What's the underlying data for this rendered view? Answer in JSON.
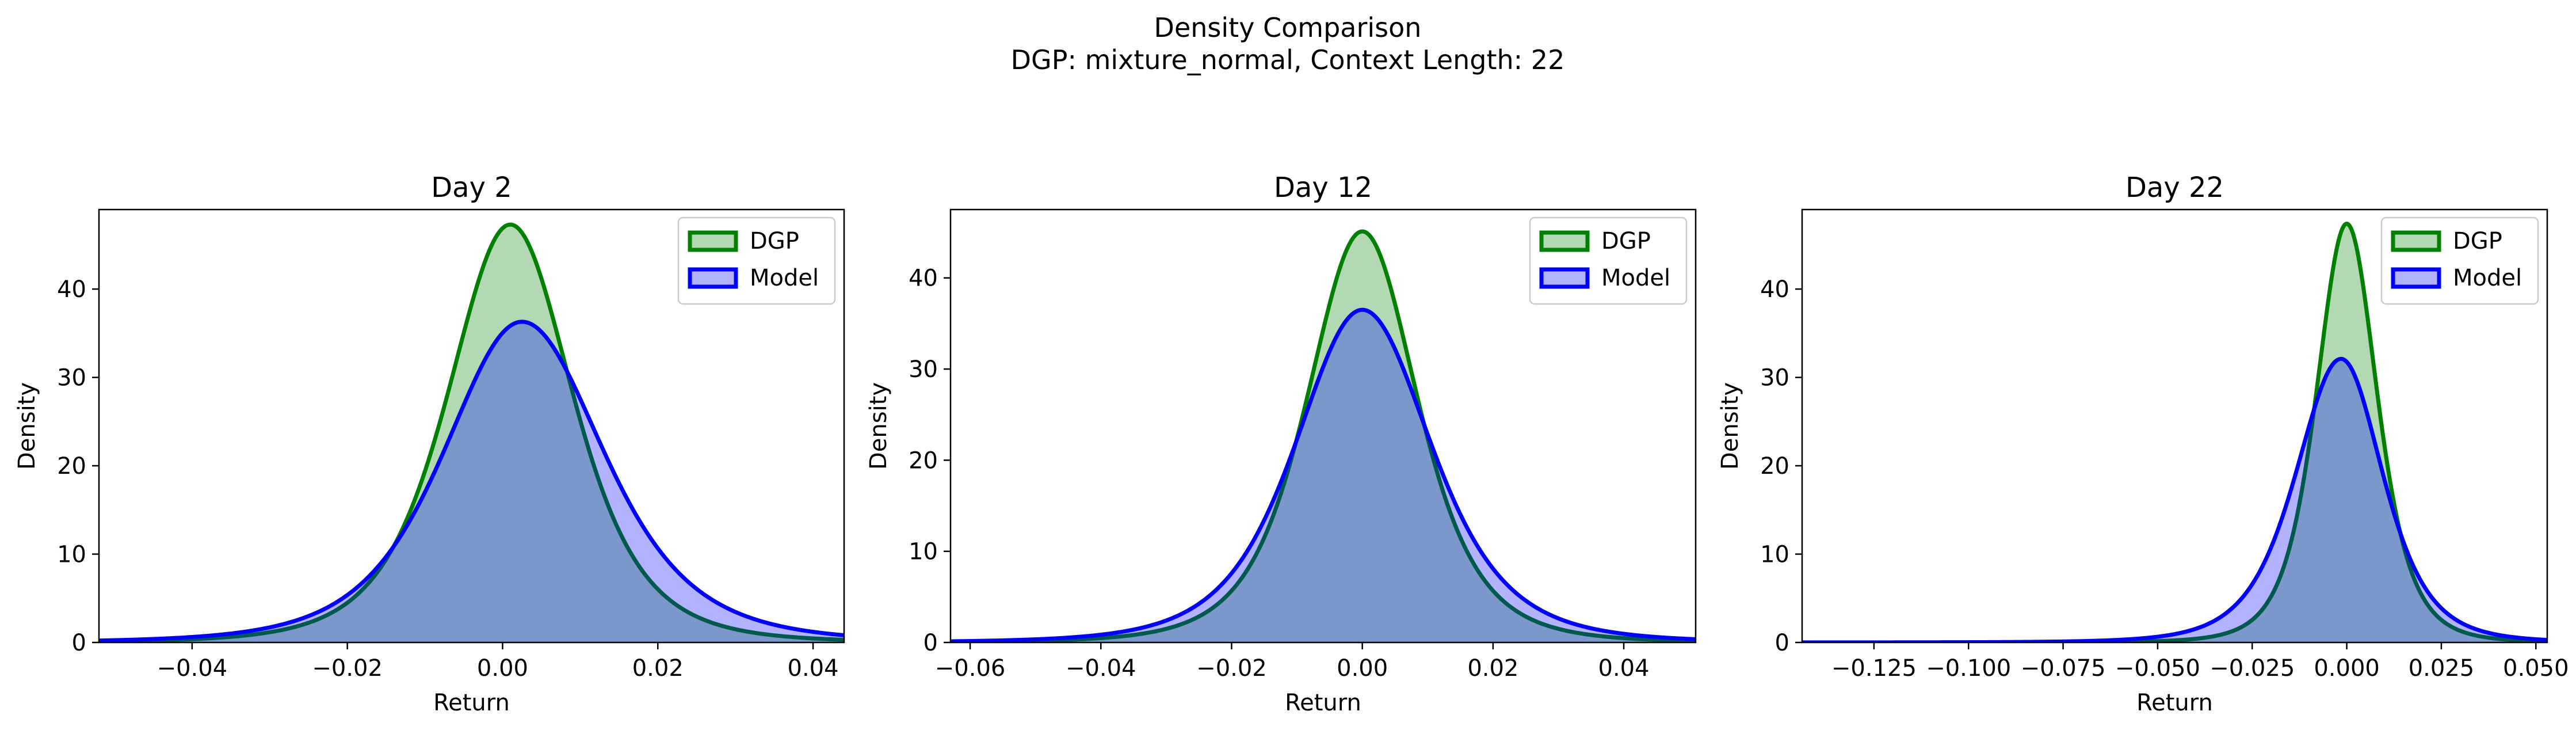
{
  "figure": {
    "title_line1": "Density Comparison",
    "title_line2": "DGP: mixture_normal, Context Length: 22"
  },
  "colors": {
    "dgp_line": "#008000",
    "dgp_fill": "#008000",
    "model_line": "#0000ff",
    "model_fill": "#0000ff"
  },
  "chart_data": [
    {
      "type": "area",
      "title": "Day 2",
      "xlabel": "Return",
      "ylabel": "Density",
      "xlim": [
        -0.052,
        0.044
      ],
      "ylim": [
        0,
        49
      ],
      "xticks": [
        -0.04,
        -0.02,
        0.0,
        0.02,
        0.04
      ],
      "xtick_labels": [
        "−0.04",
        "−0.02",
        "0.00",
        "0.02",
        "0.04"
      ],
      "yticks": [
        0,
        10,
        20,
        30,
        40
      ],
      "ytick_labels": [
        "0",
        "10",
        "20",
        "30",
        "40"
      ],
      "legend_position": "top-right",
      "series": [
        {
          "name": "DGP",
          "peak_x": 0.001,
          "peak_density": 47.3,
          "sigma_left": 0.0084,
          "sigma_right": 0.0084
        },
        {
          "name": "Model",
          "peak_x": 0.0025,
          "peak_density": 36.3,
          "sigma_left": 0.0105,
          "sigma_right": 0.011
        }
      ]
    },
    {
      "type": "area",
      "title": "Day 12",
      "xlabel": "Return",
      "ylabel": "Density",
      "xlim": [
        -0.063,
        0.051
      ],
      "ylim": [
        0,
        47.5
      ],
      "xticks": [
        -0.06,
        -0.04,
        -0.02,
        0.0,
        0.02,
        0.04
      ],
      "xtick_labels": [
        "−0.06",
        "−0.04",
        "−0.02",
        "0.00",
        "0.02",
        "0.04"
      ],
      "yticks": [
        0,
        10,
        20,
        30,
        40
      ],
      "ytick_labels": [
        "0",
        "10",
        "20",
        "30",
        "40"
      ],
      "legend_position": "top-right",
      "series": [
        {
          "name": "DGP",
          "peak_x": 0.0,
          "peak_density": 45.1,
          "sigma_left": 0.0088,
          "sigma_right": 0.0088
        },
        {
          "name": "Model",
          "peak_x": 0.0,
          "peak_density": 36.5,
          "sigma_left": 0.0107,
          "sigma_right": 0.011
        }
      ]
    },
    {
      "type": "area",
      "title": "Day 22",
      "xlabel": "Return",
      "ylabel": "Density",
      "xlim": [
        -0.144,
        0.053
      ],
      "ylim": [
        0,
        49
      ],
      "xticks": [
        -0.125,
        -0.1,
        -0.075,
        -0.05,
        -0.025,
        0.0,
        0.025,
        0.05
      ],
      "xtick_labels": [
        "−0.125",
        "−0.100",
        "−0.075",
        "−0.050",
        "−0.025",
        "0.000",
        "0.025",
        "0.050"
      ],
      "yticks": [
        0,
        10,
        20,
        30,
        40
      ],
      "ytick_labels": [
        "0",
        "10",
        "20",
        "30",
        "40"
      ],
      "legend_position": "top-right",
      "series": [
        {
          "name": "DGP",
          "peak_x": 0.0,
          "peak_density": 47.4,
          "sigma_left": 0.0084,
          "sigma_right": 0.0084
        },
        {
          "name": "Model",
          "peak_x": -0.0015,
          "peak_density": 32.1,
          "sigma_left": 0.0125,
          "sigma_right": 0.0115
        }
      ]
    }
  ]
}
